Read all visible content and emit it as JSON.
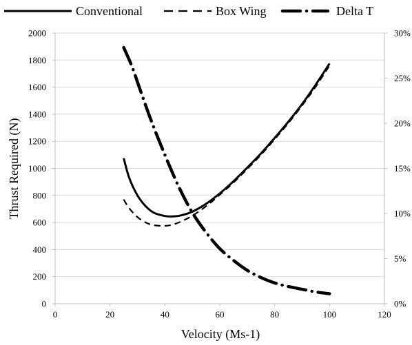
{
  "chart_data": {
    "type": "line",
    "title": "",
    "xlabel": "Velocity (Ms-1)",
    "ylabel": "Thrust Required (N)",
    "y2label": "",
    "xlim": [
      0,
      120
    ],
    "ylim": [
      0,
      2000
    ],
    "y2lim": [
      0,
      0.3
    ],
    "x_ticks": [
      "0",
      "20",
      "40",
      "60",
      "80",
      "100",
      "120"
    ],
    "y_ticks": [
      "0",
      "200",
      "400",
      "600",
      "800",
      "1000",
      "1200",
      "1400",
      "1600",
      "1800",
      "2000"
    ],
    "y2_ticks": [
      "0%",
      "5%",
      "10%",
      "15%",
      "20%",
      "25%",
      "30%"
    ],
    "grid": "horizontal",
    "legend_position": "top",
    "series": [
      {
        "name": "Conventional",
        "axis": "left",
        "style": "solid",
        "color": "#000000",
        "x": [
          25,
          27,
          30,
          33,
          36,
          40,
          43,
          46,
          50,
          55,
          60,
          65,
          70,
          75,
          80,
          85,
          90,
          95,
          100
        ],
        "y": [
          1075,
          930,
          800,
          720,
          672,
          648,
          645,
          653,
          680,
          738,
          815,
          905,
          1005,
          1110,
          1225,
          1345,
          1475,
          1620,
          1775
        ]
      },
      {
        "name": "Box Wing",
        "axis": "left",
        "style": "dashed",
        "color": "#000000",
        "x": [
          25,
          27,
          30,
          33,
          36,
          40,
          43,
          46,
          50,
          55,
          60,
          65,
          70,
          75,
          80,
          85,
          90,
          95,
          100
        ],
        "y": [
          770,
          705,
          640,
          600,
          580,
          575,
          585,
          608,
          650,
          720,
          805,
          895,
          995,
          1100,
          1215,
          1335,
          1465,
          1605,
          1760
        ]
      },
      {
        "name": "Delta T",
        "axis": "right",
        "style": "dash-dot",
        "color": "#000000",
        "x": [
          25,
          28,
          31,
          35,
          40,
          45,
          50,
          55,
          60,
          65,
          70,
          75,
          80,
          85,
          90,
          95,
          100
        ],
        "y": [
          0.284,
          0.263,
          0.237,
          0.203,
          0.165,
          0.13,
          0.101,
          0.079,
          0.061,
          0.048,
          0.037,
          0.029,
          0.023,
          0.019,
          0.016,
          0.013,
          0.011
        ]
      }
    ]
  }
}
